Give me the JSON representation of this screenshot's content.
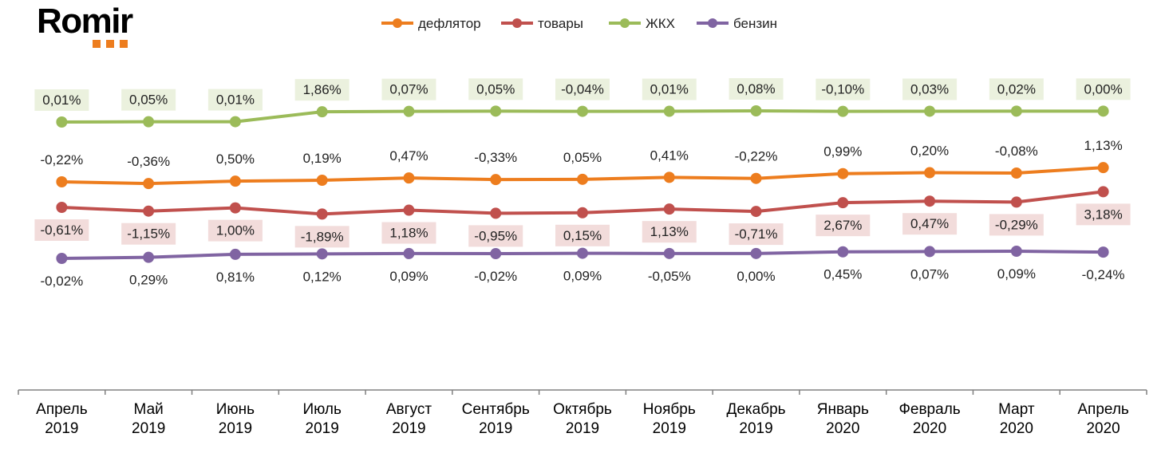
{
  "logo": {
    "text": "Romir"
  },
  "colors": {
    "deflator": "#ed7d1e",
    "goods": "#c0504d",
    "housing": "#9bbb59",
    "petrol": "#8064a2",
    "label_bg_housing": "#ebf1de",
    "label_bg_goods": "#f2dcdb"
  },
  "chart_data": {
    "type": "line",
    "categories": [
      [
        "Апрель",
        "2019"
      ],
      [
        "Май",
        "2019"
      ],
      [
        "Июнь",
        "2019"
      ],
      [
        "Июль",
        "2019"
      ],
      [
        "Август",
        "2019"
      ],
      [
        "Сентябрь",
        "2019"
      ],
      [
        "Октябрь",
        "2019"
      ],
      [
        "Ноябрь",
        "2019"
      ],
      [
        "Декабрь",
        "2019"
      ],
      [
        "Январь",
        "2020"
      ],
      [
        "Февраль",
        "2020"
      ],
      [
        "Март",
        "2020"
      ],
      [
        "Апрель",
        "2020"
      ]
    ],
    "legend_position": "top",
    "series": [
      {
        "key": "deflator",
        "name": "дефлятор",
        "color": "#ed7d1e",
        "label_position": "above",
        "label_box": false,
        "labels": [
          "-0,22%",
          "-0,36%",
          "0,50%",
          "0,19%",
          "0,47%",
          "-0,33%",
          "0,05%",
          "0,41%",
          "-0,22%",
          "0,99%",
          "0,20%",
          "-0,08%",
          "1,13%"
        ],
        "level": [
          100.0,
          99.64,
          100.14,
          100.33,
          100.8,
          100.47,
          100.52,
          100.93,
          100.71,
          101.7,
          101.9,
          101.82,
          102.95
        ]
      },
      {
        "key": "goods",
        "name": "товары",
        "color": "#c0504d",
        "label_position": "below",
        "label_box": true,
        "labels": [
          "-0,61%",
          "-1,15%",
          "1,00%",
          "-1,89%",
          "1,18%",
          "-0,95%",
          "0,15%",
          "1,13%",
          "-0,71%",
          "2,67%",
          "0,47%",
          "-0,29%",
          "3,18%"
        ],
        "level": [
          100.0,
          98.85,
          99.85,
          97.96,
          99.14,
          98.19,
          98.34,
          99.47,
          98.76,
          101.43,
          101.9,
          101.61,
          104.79
        ]
      },
      {
        "key": "housing",
        "name": "ЖКХ",
        "color": "#9bbb59",
        "label_position": "above",
        "label_box": true,
        "labels": [
          "0,01%",
          "0,05%",
          "0,01%",
          "1,86%",
          "0,07%",
          "0,05%",
          "-0,04%",
          "0,01%",
          "0,08%",
          "-0,10%",
          "0,03%",
          "0,02%",
          "0,00%"
        ],
        "level": [
          100.0,
          100.05,
          100.06,
          101.92,
          101.99,
          102.04,
          102.0,
          102.01,
          102.09,
          101.99,
          102.02,
          102.04,
          102.04
        ]
      },
      {
        "key": "petrol",
        "name": "бензин",
        "color": "#8064a2",
        "label_position": "below",
        "label_box": false,
        "labels": [
          "-0,02%",
          "0,29%",
          "0,81%",
          "0,12%",
          "0,09%",
          "-0,02%",
          "0,09%",
          "-0,05%",
          "0,00%",
          "0,45%",
          "0,07%",
          "0,09%",
          "-0,24%"
        ],
        "level": [
          100.0,
          100.29,
          101.1,
          101.22,
          101.31,
          101.29,
          101.38,
          101.33,
          101.33,
          101.78,
          101.85,
          101.94,
          101.7
        ]
      }
    ]
  }
}
